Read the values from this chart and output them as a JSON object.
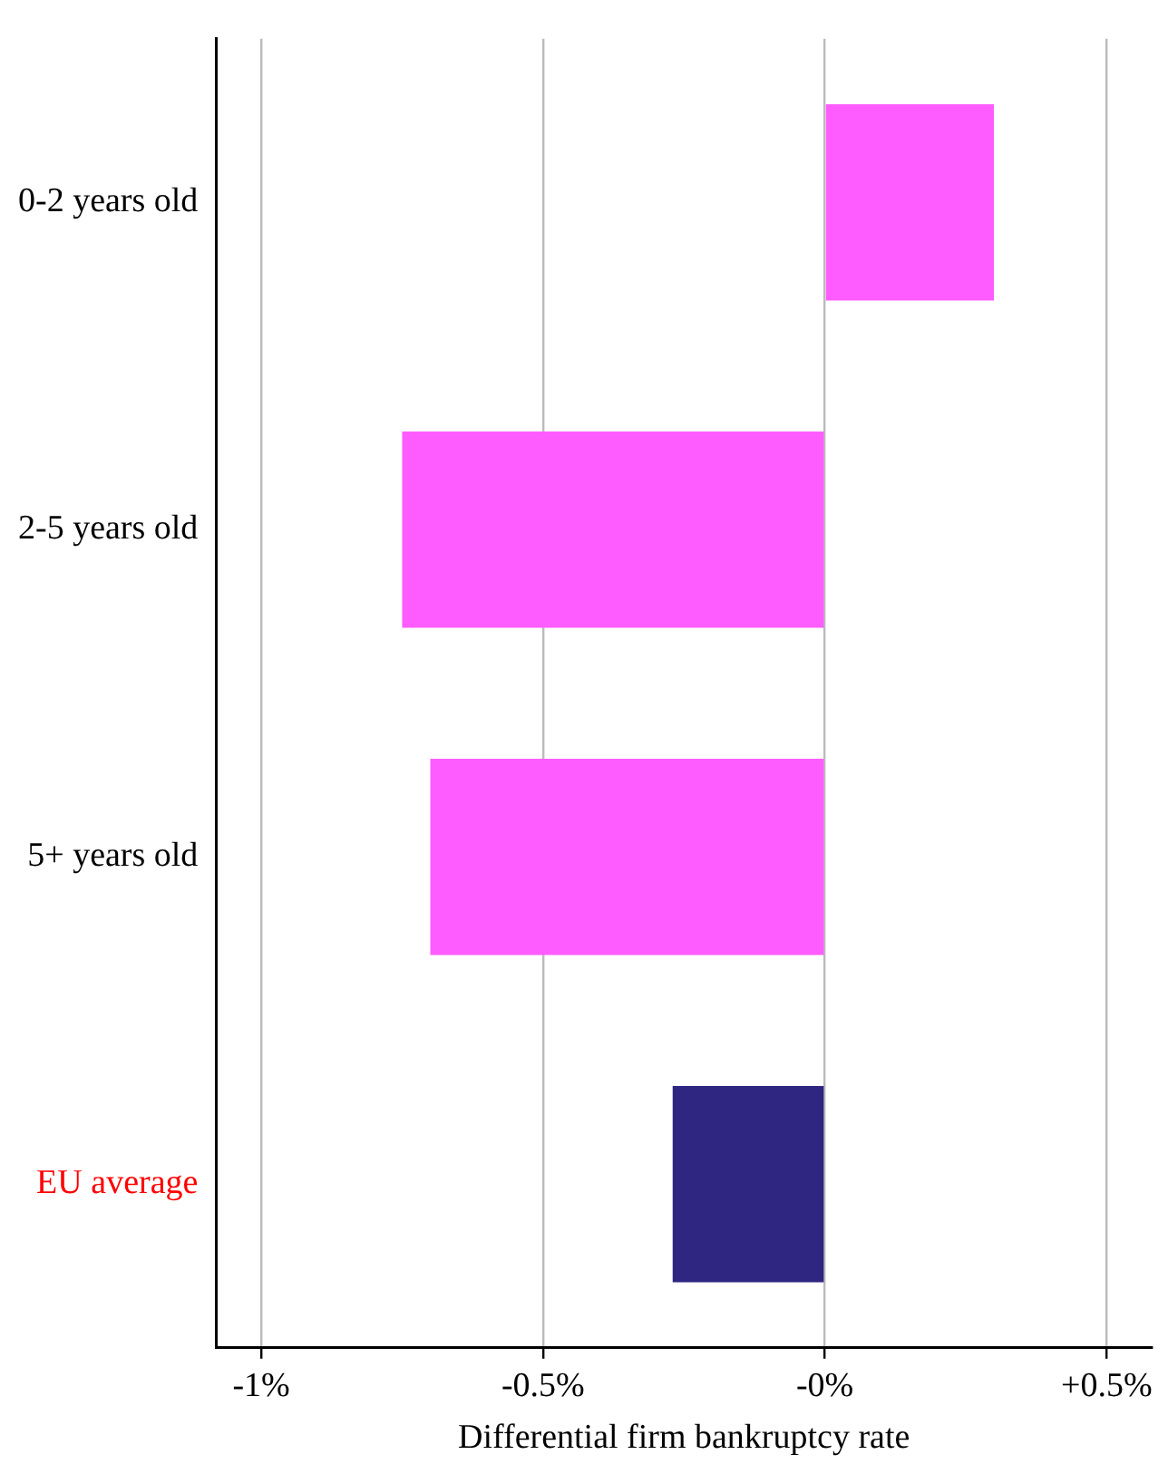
{
  "chart_data": {
    "type": "bar",
    "orientation": "horizontal",
    "xlabel": "Differential firm bankruptcy rate",
    "categories": [
      "0-2 years old",
      "2-5 years old",
      "5+ years old",
      "EU average"
    ],
    "values": [
      0.3,
      -0.75,
      -0.7,
      -0.27
    ],
    "colors": [
      "#ff5cff",
      "#ff5cff",
      "#ff5cff",
      "#2e2680"
    ],
    "xlim": [
      -1.08,
      0.58
    ],
    "xticks": [
      {
        "value": -1,
        "label": "-1%"
      },
      {
        "value": -0.5,
        "label": "-0.5%"
      },
      {
        "value": 0,
        "label": "-0%"
      },
      {
        "value": 0.5,
        "label": "+0.5%"
      }
    ],
    "grid": "x",
    "legend": false
  }
}
